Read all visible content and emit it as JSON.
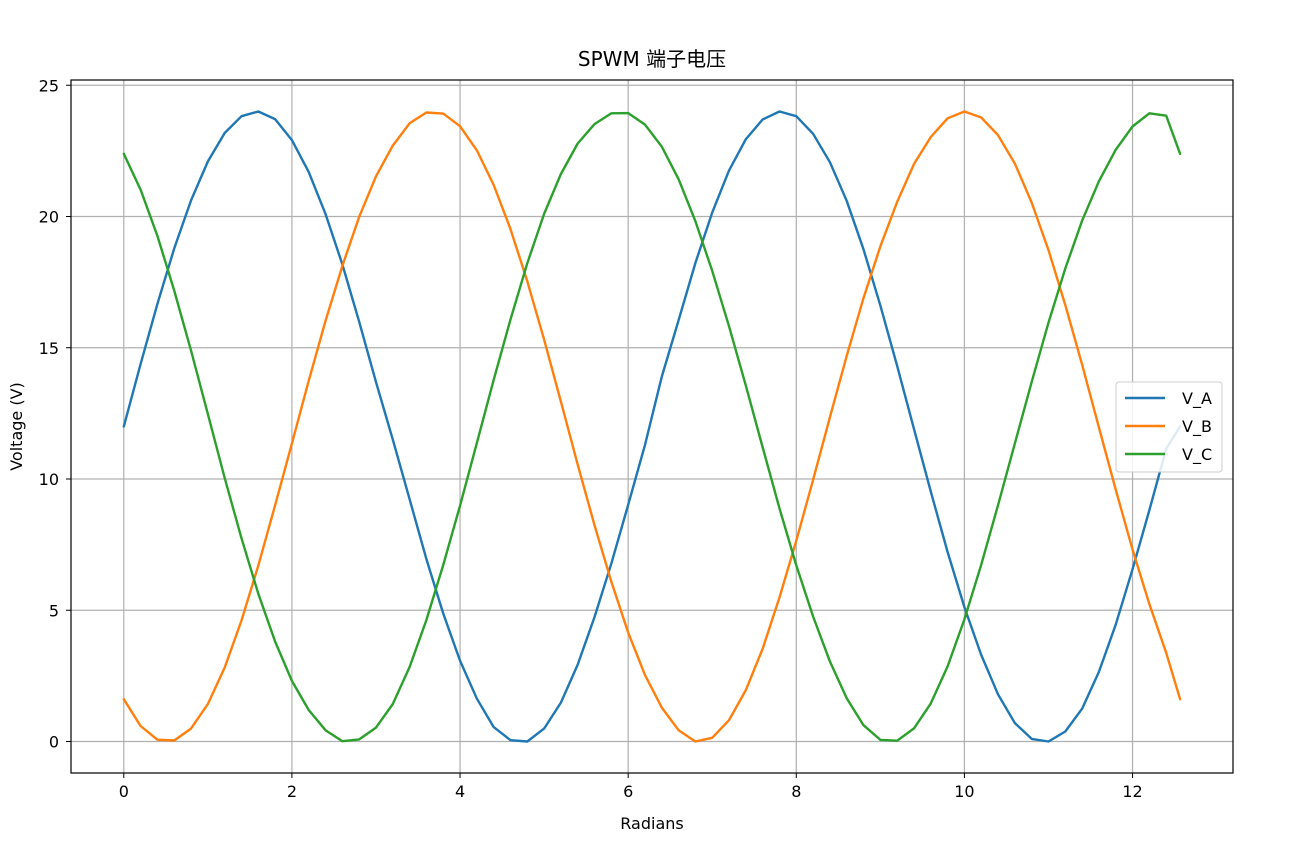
{
  "chart_data": {
    "type": "line",
    "title": "SPWM 端子电压",
    "xlabel": "Radians",
    "ylabel": "Voltage (V)",
    "xlim": [
      -0.628,
      13.195
    ],
    "ylim": [
      -1.2,
      25.2
    ],
    "xticks": [
      0,
      2,
      4,
      6,
      8,
      10,
      12
    ],
    "yticks": [
      0,
      5,
      10,
      15,
      20,
      25
    ],
    "grid": true,
    "legend_position": "center-right",
    "series": [
      {
        "name": "V_A",
        "color": "#1f77b4",
        "x": [
          0.0,
          0.2,
          0.4,
          0.6,
          0.8,
          1.0,
          1.2,
          1.4,
          1.6,
          1.8,
          2.0,
          2.2,
          2.4,
          2.6,
          2.8,
          3.0,
          3.2,
          3.4,
          3.6,
          3.8,
          4.0,
          4.2,
          4.4,
          4.6,
          4.8,
          5.0,
          5.2,
          5.4,
          5.6,
          5.8,
          6.0,
          6.2,
          6.4,
          6.6,
          6.8,
          7.0,
          7.2,
          7.4,
          7.6,
          7.8,
          8.0,
          8.2,
          8.4,
          8.6,
          8.8,
          9.0,
          9.2,
          9.4,
          9.6,
          9.8,
          10.0,
          10.2,
          10.4,
          10.6,
          10.8,
          11.0,
          11.2,
          11.4,
          11.6,
          11.8,
          12.0,
          12.2,
          12.4,
          12.566
        ],
        "y": [
          12.0,
          14.38,
          16.67,
          18.78,
          20.61,
          22.1,
          23.18,
          23.82,
          24.0,
          23.71,
          22.91,
          21.7,
          20.1,
          18.17,
          15.99,
          13.69,
          11.5,
          9.23,
          6.95,
          4.88,
          3.08,
          1.63,
          0.55,
          0.05,
          0.0,
          0.49,
          1.48,
          2.93,
          4.74,
          6.79,
          9.02,
          11.3,
          13.9,
          16.05,
          18.23,
          20.15,
          21.75,
          22.95,
          23.7,
          24.0,
          23.82,
          23.15,
          22.07,
          20.6,
          18.75,
          16.6,
          14.3,
          11.9,
          9.52,
          7.22,
          5.12,
          3.3,
          1.8,
          0.7,
          0.1,
          0.0,
          0.38,
          1.25,
          2.65,
          4.45,
          6.56,
          8.82,
          11.15,
          12.0
        ]
      },
      {
        "name": "V_B",
        "color": "#ff7f0e",
        "x": [
          0.0,
          0.2,
          0.4,
          0.6,
          0.8,
          1.0,
          1.2,
          1.4,
          1.6,
          1.8,
          2.0,
          2.2,
          2.4,
          2.6,
          2.8,
          3.0,
          3.2,
          3.4,
          3.6,
          3.8,
          4.0,
          4.2,
          4.4,
          4.6,
          4.8,
          5.0,
          5.2,
          5.4,
          5.6,
          5.8,
          6.0,
          6.2,
          6.4,
          6.6,
          6.8,
          7.0,
          7.2,
          7.4,
          7.6,
          7.8,
          8.0,
          8.2,
          8.4,
          8.6,
          8.8,
          9.0,
          9.2,
          9.4,
          9.6,
          9.8,
          10.0,
          10.2,
          10.4,
          10.6,
          10.8,
          11.0,
          11.2,
          11.4,
          11.6,
          11.8,
          12.0,
          12.2,
          12.4,
          12.566
        ],
        "y": [
          1.61,
          0.59,
          0.07,
          0.04,
          0.49,
          1.43,
          2.82,
          4.61,
          6.7,
          9.0,
          11.35,
          13.74,
          16.02,
          18.12,
          19.99,
          21.53,
          22.7,
          23.55,
          23.96,
          23.92,
          23.44,
          22.52,
          21.2,
          19.52,
          17.53,
          15.31,
          12.95,
          10.55,
          8.24,
          6.08,
          4.15,
          2.53,
          1.29,
          0.43,
          0.0,
          0.14,
          0.81,
          1.96,
          3.54,
          5.49,
          7.65,
          9.97,
          12.35,
          14.69,
          16.89,
          18.87,
          20.56,
          22.0,
          23.03,
          23.74,
          24.0,
          23.77,
          23.1,
          22.01,
          20.53,
          18.72,
          16.63,
          14.36,
          11.97,
          9.6,
          7.32,
          5.23,
          3.38,
          1.61
        ]
      },
      {
        "name": "V_C",
        "color": "#2ca02c",
        "x": [
          0.0,
          0.2,
          0.4,
          0.6,
          0.8,
          1.0,
          1.2,
          1.4,
          1.6,
          1.8,
          2.0,
          2.2,
          2.4,
          2.6,
          2.8,
          3.0,
          3.2,
          3.4,
          3.6,
          3.8,
          4.0,
          4.2,
          4.4,
          4.6,
          4.8,
          5.0,
          5.2,
          5.4,
          5.6,
          5.8,
          6.0,
          6.2,
          6.4,
          6.6,
          6.8,
          7.0,
          7.2,
          7.4,
          7.6,
          7.8,
          8.0,
          8.2,
          8.4,
          8.6,
          8.8,
          9.0,
          9.2,
          9.4,
          9.6,
          9.8,
          10.0,
          10.2,
          10.4,
          10.6,
          10.8,
          11.0,
          11.2,
          11.4,
          11.6,
          11.8,
          12.0,
          12.2,
          12.4,
          12.566
        ],
        "y": [
          22.39,
          21.02,
          19.26,
          17.18,
          14.9,
          12.47,
          10.04,
          7.74,
          5.63,
          3.81,
          2.31,
          1.2,
          0.43,
          0.01,
          0.08,
          0.53,
          1.43,
          2.84,
          4.63,
          6.72,
          8.98,
          11.38,
          13.78,
          16.08,
          18.22,
          20.1,
          21.62,
          22.78,
          23.52,
          23.93,
          23.94,
          23.5,
          22.66,
          21.42,
          19.82,
          17.93,
          15.82,
          13.55,
          11.2,
          8.88,
          6.71,
          4.76,
          3.05,
          1.65,
          0.62,
          0.06,
          0.03,
          0.5,
          1.45,
          2.86,
          4.65,
          6.73,
          9.0,
          11.36,
          13.7,
          15.96,
          18.02,
          19.84,
          21.34,
          22.54,
          23.43,
          23.93,
          23.84,
          22.39
        ]
      }
    ]
  }
}
